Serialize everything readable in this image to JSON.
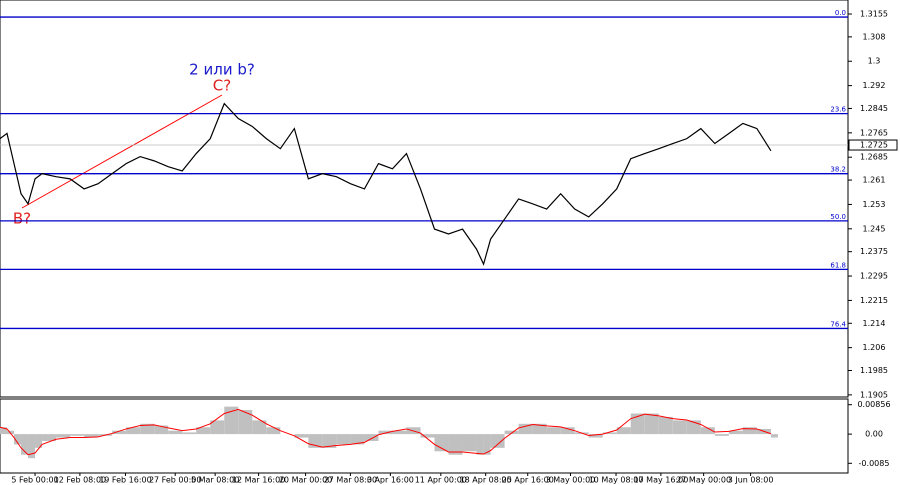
{
  "chart_data": {
    "type": "line",
    "annotations": {
      "wave_top": "2 или b?",
      "c": "C?",
      "b": "B?"
    },
    "x": [
      0,
      1,
      2,
      3,
      4,
      5,
      6,
      8,
      10,
      12,
      14,
      16,
      18,
      20,
      22,
      24,
      26,
      28,
      30,
      32,
      34,
      36,
      38,
      40,
      42,
      44,
      46,
      48,
      50,
      52,
      54,
      56,
      58,
      60,
      62,
      64,
      66,
      68,
      69,
      70,
      72,
      74,
      76,
      78,
      80,
      82,
      84,
      86,
      88,
      90,
      92,
      94,
      96,
      98,
      100,
      102,
      104,
      106,
      108,
      110
    ],
    "series": [
      {
        "color": "#000000",
        "values": [
          1.2746,
          1.2763,
          1.2664,
          1.2565,
          1.2532,
          1.2614,
          1.2631,
          1.2621,
          1.2614,
          1.2581,
          1.2598,
          1.2631,
          1.2664,
          1.2687,
          1.2673,
          1.2654,
          1.264,
          1.2697,
          1.2746,
          1.2861,
          1.2812,
          1.2786,
          1.2746,
          1.2713,
          1.2779,
          1.2614,
          1.2631,
          1.2621,
          1.2598,
          1.2581,
          1.2664,
          1.2647,
          1.2697,
          1.2581,
          1.2449,
          1.2433,
          1.2449,
          1.2383,
          1.2334,
          1.2416,
          1.2482,
          1.2548,
          1.2532,
          1.2515,
          1.2565,
          1.2515,
          1.2489,
          1.2532,
          1.2581,
          1.268,
          1.2697,
          1.2713,
          1.273,
          1.2746,
          1.2779,
          1.273,
          1.2763,
          1.2796,
          1.2779,
          1.2706
        ]
      }
    ],
    "xlim": [
      0,
      121
    ],
    "xticks": [
      {
        "value": 5,
        "label": "5 Feb 00:00"
      },
      {
        "value": 11.4,
        "label": "12 Feb 08:00"
      },
      {
        "value": 17.9,
        "label": "19 Feb 16:00"
      },
      {
        "value": 25,
        "label": "27 Feb 00:00"
      },
      {
        "value": 30.7,
        "label": "5 Mar 08:00"
      },
      {
        "value": 36.9,
        "label": "12 Mar 16:00"
      },
      {
        "value": 43.6,
        "label": "20 Mar 00:00"
      },
      {
        "value": 50,
        "label": "27 Mar 08:00"
      },
      {
        "value": 55.7,
        "label": "3 Apr 16:00"
      },
      {
        "value": 62.9,
        "label": "11 Apr 00:00"
      },
      {
        "value": 69.3,
        "label": "18 Apr 08:00"
      },
      {
        "value": 75.3,
        "label": "25 Apr 16:00"
      },
      {
        "value": 81.4,
        "label": "3 May 00:00"
      },
      {
        "value": 87.9,
        "label": "10 May 08:00"
      },
      {
        "value": 94.3,
        "label": "17 May 16:00"
      },
      {
        "value": 100.4,
        "label": "27 May 00:00"
      },
      {
        "value": 107.1,
        "label": "3 Jun 08:00"
      }
    ],
    "ylim": [
      1.1898,
      1.3201
    ],
    "yticks": [
      1.3155,
      1.308,
      1.3,
      1.292,
      1.2845,
      1.2765,
      1.2685,
      1.261,
      1.253,
      1.245,
      1.2375,
      1.2295,
      1.2215,
      1.214,
      1.206,
      1.1985,
      1.1905
    ],
    "last_price": 1.2725,
    "levels": [
      {
        "value": 1.3145,
        "label": "0.0"
      },
      {
        "value": 1.2828,
        "label": "23.6"
      },
      {
        "value": 1.2631,
        "label": "38.2"
      },
      {
        "value": 1.2476,
        "label": "50.0"
      },
      {
        "value": 1.2317,
        "label": "61.8"
      },
      {
        "value": 1.2123,
        "label": "76.4"
      }
    ],
    "level_color": "#0000cc",
    "oscillator": {
      "ylim": [
        -0.01132,
        0.01022
      ],
      "yticks": [
        0.00856,
        {
          "value": 0,
          "label": "0.00"
        },
        -0.0085
      ],
      "histogram_color": "#c0c0c0",
      "signal_color": "#ff0000",
      "histogram": [
        0.002,
        0.001,
        -0.003,
        -0.006,
        -0.007,
        -0.004,
        -0.002,
        -0.001,
        -0.0005,
        -0.001,
        -0.0005,
        0.001,
        0.002,
        0.003,
        0.0025,
        0.001,
        0.0005,
        0.002,
        0.004,
        0.008,
        0.007,
        0.004,
        0.002,
        0,
        -0.001,
        -0.004,
        -0.004,
        -0.003,
        -0.003,
        -0.002,
        0.001,
        0.001,
        0.002,
        -0.001,
        -0.005,
        -0.006,
        -0.005,
        -0.006,
        -0.006,
        -0.004,
        0.001,
        0.003,
        0.003,
        0.002,
        0.002,
        0.0005,
        -0.001,
        0.0005,
        0.002,
        0.006,
        0.006,
        0.005,
        0.004,
        0.004,
        0.002,
        -0.0005,
        0.001,
        0.002,
        0.0015,
        -0.001
      ],
      "signal": [
        0.002,
        0.0015,
        -0.001,
        -0.004,
        -0.006,
        -0.0055,
        -0.003,
        -0.0015,
        -0.001,
        -0.001,
        -0.0008,
        0.0002,
        0.0015,
        0.0025,
        0.0027,
        0.0018,
        0.001,
        0.0015,
        0.003,
        0.006,
        0.0072,
        0.0055,
        0.003,
        0.001,
        -0.0005,
        -0.0028,
        -0.0038,
        -0.0033,
        -0.003,
        -0.0024,
        -0.0002,
        0.0008,
        0.0015,
        0.0003,
        -0.003,
        -0.0052,
        -0.0052,
        -0.0056,
        -0.0058,
        -0.0048,
        -0.0012,
        0.0018,
        0.0028,
        0.0024,
        0.0021,
        0.001,
        -0.0004,
        0,
        0.0012,
        0.0045,
        0.0058,
        0.0053,
        0.0045,
        0.0041,
        0.0028,
        0.0006,
        0.0008,
        0.0016,
        0.0015,
        0.0001
      ]
    }
  }
}
